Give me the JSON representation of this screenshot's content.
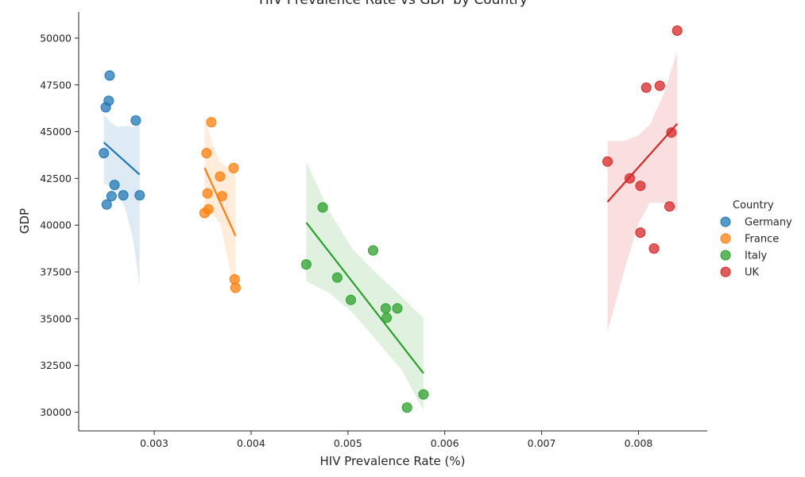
{
  "chart_data": {
    "type": "scatter",
    "title": "HIV Prevalence Rate vs GDP by Country",
    "xlabel": "HIV Prevalence Rate (%)",
    "ylabel": "GDP",
    "xlim": [
      0.00222,
      0.00871
    ],
    "ylim": [
      29000,
      51400
    ],
    "xticks": [
      0.003,
      0.004,
      0.005,
      0.006,
      0.007,
      0.008
    ],
    "xtick_labels": [
      "0.003",
      "0.004",
      "0.005",
      "0.006",
      "0.007",
      "0.008"
    ],
    "yticks": [
      30000,
      32500,
      35000,
      37500,
      40000,
      42500,
      45000,
      47500,
      50000
    ],
    "ytick_labels": [
      "30000",
      "32500",
      "35000",
      "37500",
      "40000",
      "42500",
      "45000",
      "47500",
      "50000"
    ],
    "grid": false,
    "regression_lines": true,
    "confidence_bands": true,
    "legend": {
      "title": "Country",
      "position": "right"
    },
    "series": [
      {
        "name": "Germany",
        "color": "#1f77b4",
        "points": [
          [
            0.00254,
            48000
          ],
          [
            0.00253,
            46650
          ],
          [
            0.0025,
            46300
          ],
          [
            0.00281,
            45600
          ],
          [
            0.00248,
            43850
          ],
          [
            0.00259,
            42150
          ],
          [
            0.00256,
            41550
          ],
          [
            0.00268,
            41600
          ],
          [
            0.00285,
            41600
          ],
          [
            0.00251,
            41100
          ]
        ],
        "fit": [
          [
            0.00248,
            44420
          ],
          [
            0.00285,
            42700
          ]
        ],
        "band": {
          "x": [
            0.00248,
            0.00255,
            0.00262,
            0.0027,
            0.00278,
            0.00285
          ],
          "upper": [
            45900,
            45500,
            45250,
            45300,
            45250,
            45400
          ],
          "lower": [
            42200,
            42100,
            41800,
            40900,
            39300,
            36700
          ]
        }
      },
      {
        "name": "France",
        "color": "#ff7f0e",
        "points": [
          [
            0.00359,
            45500
          ],
          [
            0.00354,
            43850
          ],
          [
            0.00382,
            43050
          ],
          [
            0.00368,
            42600
          ],
          [
            0.00355,
            41700
          ],
          [
            0.0037,
            41550
          ],
          [
            0.00356,
            40850
          ],
          [
            0.00352,
            40650
          ],
          [
            0.00383,
            37100
          ],
          [
            0.00384,
            36650
          ]
        ],
        "fit": [
          [
            0.00352,
            43060
          ],
          [
            0.00384,
            39420
          ]
        ],
        "band": {
          "x": [
            0.00352,
            0.0036,
            0.00368,
            0.00376,
            0.00384
          ],
          "upper": [
            45800,
            44300,
            43400,
            43100,
            42900
          ],
          "lower": [
            40300,
            40600,
            40100,
            38200,
            36000
          ]
        }
      },
      {
        "name": "Italy",
        "color": "#2ca02c",
        "points": [
          [
            0.00474,
            40950
          ],
          [
            0.00526,
            38650
          ],
          [
            0.00457,
            37900
          ],
          [
            0.00489,
            37200
          ],
          [
            0.00503,
            36000
          ],
          [
            0.00539,
            35550
          ],
          [
            0.00551,
            35550
          ],
          [
            0.0054,
            35050
          ],
          [
            0.00578,
            30950
          ],
          [
            0.00561,
            30250
          ]
        ],
        "fit": [
          [
            0.00457,
            40140
          ],
          [
            0.00578,
            32080
          ]
        ],
        "band": {
          "x": [
            0.00457,
            0.0048,
            0.00505,
            0.0053,
            0.00555,
            0.00578
          ],
          "upper": [
            43400,
            40800,
            38700,
            37400,
            36200,
            35000
          ],
          "lower": [
            37000,
            36400,
            35300,
            33800,
            32300,
            30100
          ]
        }
      },
      {
        "name": "UK",
        "color": "#d62728",
        "points": [
          [
            0.0084,
            50400
          ],
          [
            0.00822,
            47450
          ],
          [
            0.00808,
            47350
          ],
          [
            0.00834,
            44950
          ],
          [
            0.00768,
            43400
          ],
          [
            0.00791,
            42500
          ],
          [
            0.00802,
            42100
          ],
          [
            0.00832,
            41000
          ],
          [
            0.00802,
            39600
          ],
          [
            0.00816,
            38750
          ]
        ],
        "fit": [
          [
            0.00768,
            41240
          ],
          [
            0.0084,
            45420
          ]
        ],
        "band": {
          "x": [
            0.00768,
            0.00785,
            0.008,
            0.00812,
            0.00826,
            0.0084
          ],
          "upper": [
            44500,
            44500,
            44800,
            45400,
            47000,
            49300
          ],
          "lower": [
            34300,
            37500,
            40100,
            41200,
            41200,
            40700
          ]
        }
      }
    ]
  }
}
